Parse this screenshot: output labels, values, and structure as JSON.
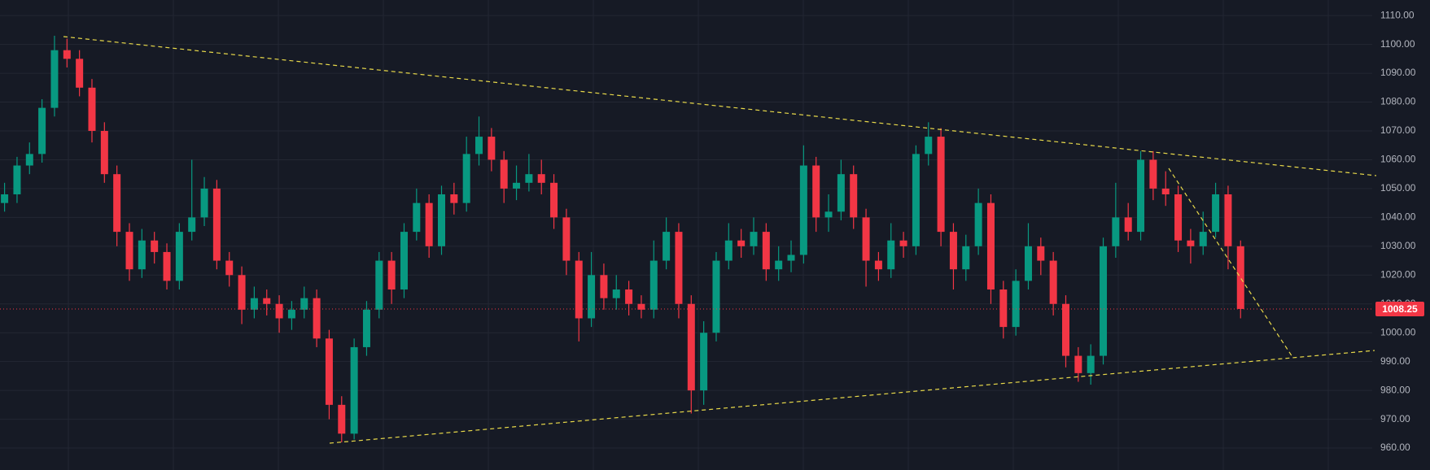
{
  "chart_data": {
    "type": "candlestick",
    "up_color": "#089981",
    "down_color": "#f23645",
    "ylim": [
      952.4,
      1115.4
    ],
    "yticks": [
      {
        "value": 960,
        "label": "960.00"
      },
      {
        "value": 970,
        "label": "970.00"
      },
      {
        "value": 980,
        "label": "980.00"
      },
      {
        "value": 990,
        "label": "990.00"
      },
      {
        "value": 1000,
        "label": "1000.00"
      },
      {
        "value": 1010,
        "label": "1010.00"
      },
      {
        "value": 1020,
        "label": "1020.00"
      },
      {
        "value": 1030,
        "label": "1030.00"
      },
      {
        "value": 1040,
        "label": "1040.00"
      },
      {
        "value": 1050,
        "label": "1050.00"
      },
      {
        "value": 1060,
        "label": "1060.00"
      },
      {
        "value": 1070,
        "label": "1070.00"
      },
      {
        "value": 1080,
        "label": "1080.00"
      },
      {
        "value": 1090,
        "label": "1090.00"
      },
      {
        "value": 1100,
        "label": "1100.00"
      },
      {
        "value": 1110,
        "label": "1110.00"
      }
    ],
    "grid": true,
    "open": [
      1045,
      1048,
      1058,
      1062,
      1078,
      1098,
      1095,
      1085,
      1070,
      1055,
      1035,
      1022,
      1032,
      1028,
      1018,
      1035,
      1040,
      1050,
      1025,
      1020,
      1008,
      1012,
      1010,
      1005,
      1008,
      1012,
      998,
      975,
      965,
      995,
      1008,
      1025,
      1015,
      1035,
      1045,
      1030,
      1048,
      1045,
      1062,
      1068,
      1060,
      1050,
      1052,
      1055,
      1052,
      1040,
      1025,
      1005,
      1020,
      1012,
      1015,
      1010,
      1008,
      1025,
      1035,
      1010,
      980,
      1000,
      1025,
      1032,
      1030,
      1035,
      1022,
      1025,
      1027,
      1058,
      1040,
      1042,
      1055,
      1040,
      1025,
      1022,
      1032,
      1030,
      1062,
      1068,
      1035,
      1022,
      1030,
      1045,
      1015,
      1002,
      1018,
      1030,
      1025,
      1010,
      992,
      986,
      992,
      1030,
      1040,
      1035,
      1060,
      1050,
      1048,
      1032,
      1030,
      1035,
      1048,
      1030
    ],
    "high": [
      1052,
      1061,
      1066,
      1081,
      1103,
      1102,
      1098,
      1088,
      1073,
      1058,
      1038,
      1036,
      1035,
      1031,
      1038,
      1060,
      1054,
      1053,
      1028,
      1023,
      1016,
      1015,
      1013,
      1011,
      1016,
      1015,
      1001,
      978,
      998,
      1011,
      1028,
      1028,
      1038,
      1050,
      1048,
      1051,
      1052,
      1068,
      1075,
      1071,
      1063,
      1058,
      1062,
      1060,
      1055,
      1043,
      1028,
      1028,
      1024,
      1020,
      1018,
      1013,
      1032,
      1040,
      1038,
      1013,
      1004,
      1028,
      1038,
      1036,
      1040,
      1038,
      1030,
      1032,
      1065,
      1061,
      1048,
      1060,
      1058,
      1043,
      1028,
      1038,
      1035,
      1065,
      1073,
      1071,
      1038,
      1034,
      1050,
      1048,
      1018,
      1022,
      1038,
      1033,
      1028,
      1013,
      995,
      996,
      1033,
      1052,
      1045,
      1063,
      1063,
      1056,
      1051,
      1036,
      1042,
      1052,
      1051,
      1032
    ],
    "low": [
      1042,
      1045,
      1055,
      1059,
      1075,
      1092,
      1082,
      1066,
      1052,
      1030,
      1018,
      1019,
      1024,
      1015,
      1015,
      1032,
      1037,
      1022,
      1016,
      1003,
      1005,
      1006,
      1000,
      1001,
      1005,
      995,
      970,
      962,
      963,
      992,
      1005,
      1010,
      1012,
      1032,
      1026,
      1027,
      1041,
      1042,
      1058,
      1056,
      1045,
      1046,
      1049,
      1048,
      1036,
      1020,
      997,
      1002,
      1008,
      1008,
      1006,
      1005,
      1005,
      1022,
      1005,
      972,
      975,
      997,
      1022,
      1026,
      1027,
      1018,
      1018,
      1021,
      1024,
      1035,
      1035,
      1039,
      1036,
      1016,
      1018,
      1019,
      1026,
      1027,
      1058,
      1030,
      1015,
      1018,
      1027,
      1010,
      998,
      999,
      1015,
      1020,
      1006,
      988,
      983,
      982,
      989,
      1026,
      1032,
      1032,
      1046,
      1044,
      1028,
      1024,
      1027,
      1033,
      1022,
      1005
    ],
    "close": [
      1048,
      1058,
      1062,
      1078,
      1098,
      1095,
      1085,
      1070,
      1055,
      1035,
      1022,
      1032,
      1028,
      1018,
      1035,
      1040,
      1050,
      1025,
      1020,
      1008,
      1012,
      1010,
      1005,
      1008,
      1012,
      998,
      975,
      965,
      995,
      1008,
      1025,
      1015,
      1035,
      1045,
      1030,
      1048,
      1045,
      1062,
      1068,
      1060,
      1050,
      1052,
      1055,
      1052,
      1040,
      1025,
      1005,
      1020,
      1012,
      1015,
      1010,
      1008,
      1025,
      1035,
      1010,
      980,
      1000,
      1025,
      1032,
      1030,
      1035,
      1022,
      1025,
      1027,
      1058,
      1040,
      1042,
      1055,
      1040,
      1025,
      1022,
      1032,
      1030,
      1062,
      1068,
      1035,
      1022,
      1030,
      1045,
      1015,
      1002,
      1018,
      1030,
      1025,
      1010,
      992,
      986,
      992,
      1030,
      1040,
      1035,
      1060,
      1050,
      1048,
      1032,
      1030,
      1035,
      1048,
      1030,
      1008.25
    ]
  }
}
